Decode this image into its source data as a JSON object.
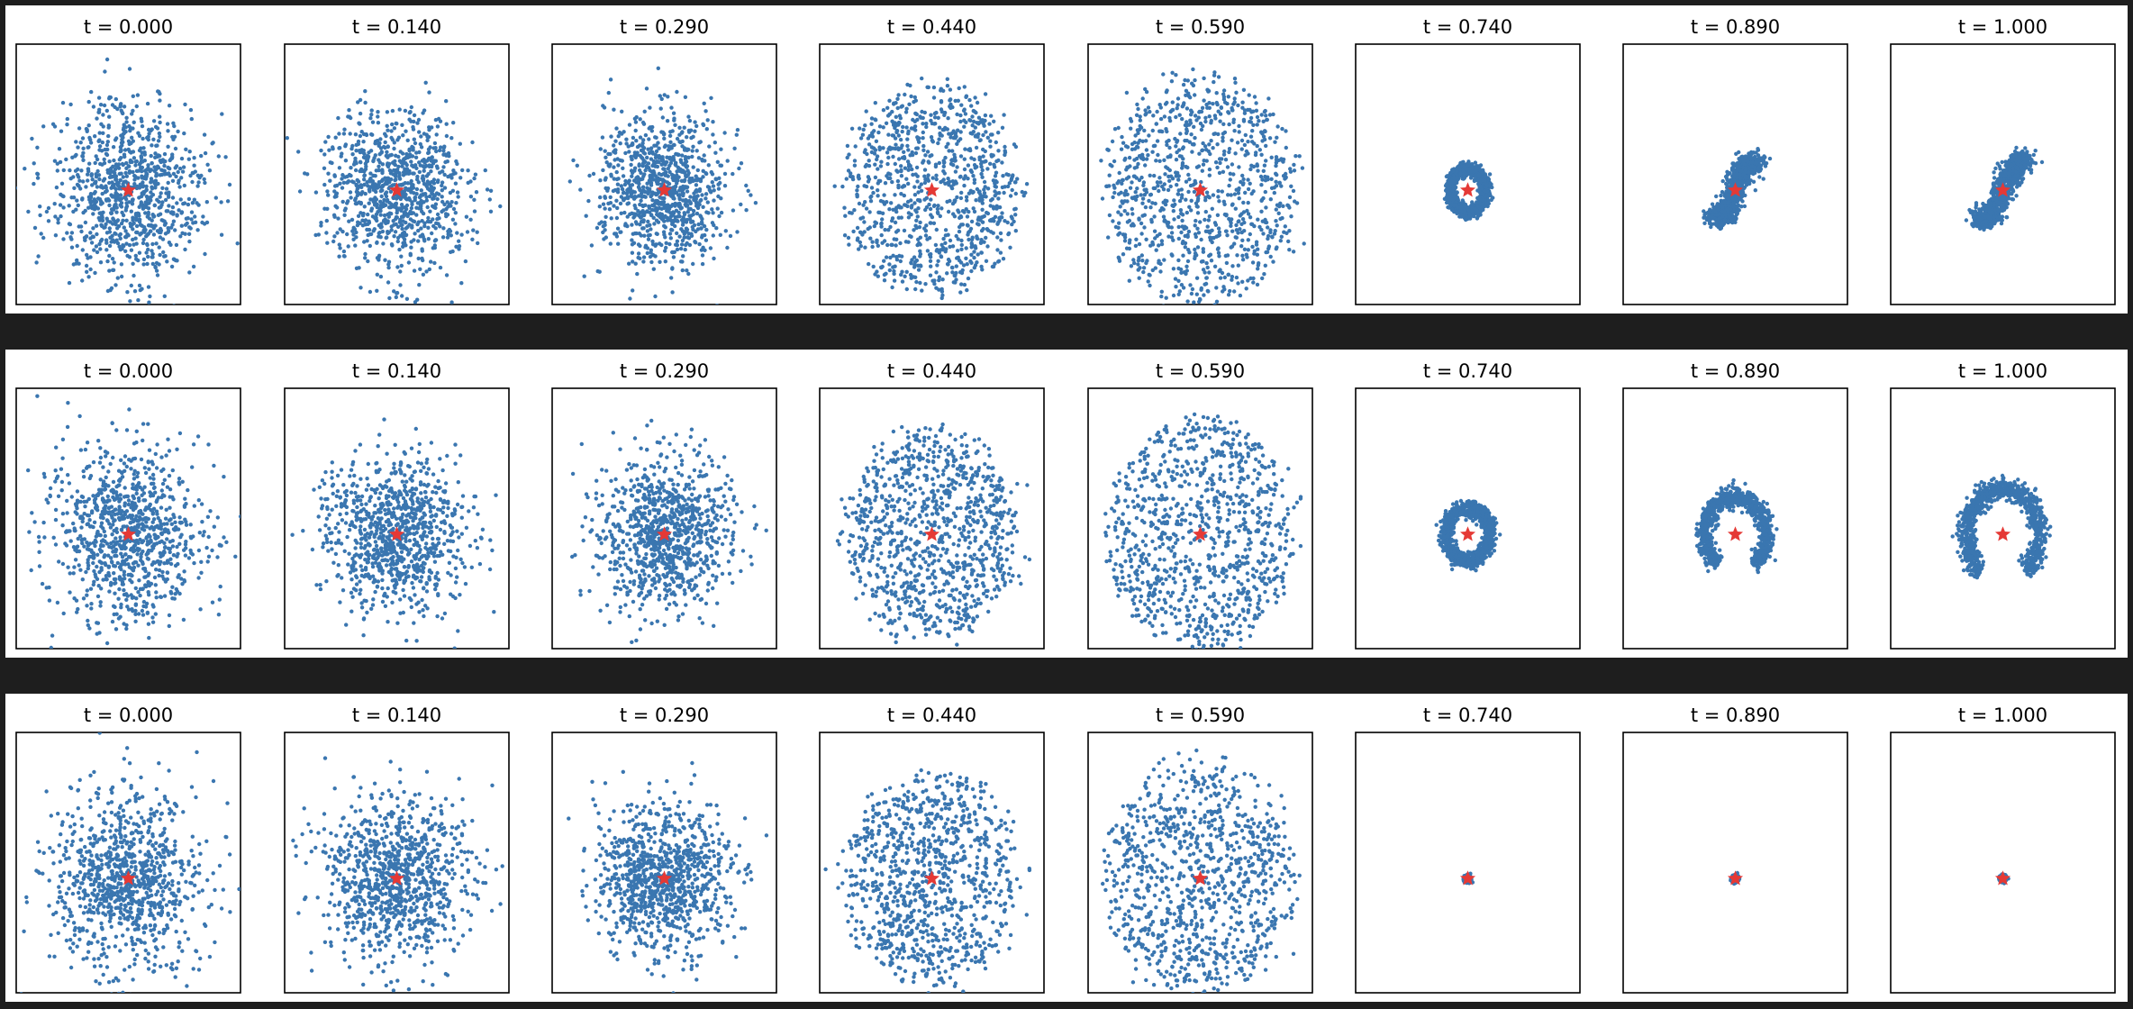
{
  "figure": {
    "colors": {
      "background": "#1e1e1e",
      "panel": "#ffffff",
      "points": "#3a76b0",
      "target_star": "#e53935"
    },
    "target_marker": "red star at origin",
    "rows": 3,
    "columns": 8
  },
  "chart_data": [
    {
      "type": "scatter",
      "row": 1,
      "description": "Row 1: blue point cloud collapsing toward red star target over time; ends as a compact S-shaped cluster",
      "xlim": [
        -2.5,
        2.5
      ],
      "ylim": [
        -2.5,
        3.2
      ],
      "target": {
        "x": 0,
        "y": 0
      },
      "panels": [
        {
          "title": "t = 0.000",
          "spread": 1.0,
          "mode": "gauss"
        },
        {
          "title": "t = 0.140",
          "spread": 0.92,
          "mode": "gauss"
        },
        {
          "title": "t = 0.290",
          "spread": 0.86,
          "mode": "gauss"
        },
        {
          "title": "t = 0.440",
          "spread": 0.95,
          "mode": "uniform"
        },
        {
          "title": "t = 0.590",
          "spread": 1.05,
          "mode": "uniform"
        },
        {
          "title": "t = 0.740",
          "spread": 0.18,
          "mode": "ring"
        },
        {
          "title": "t = 0.890",
          "spread": 0.18,
          "mode": "arms"
        },
        {
          "title": "t = 1.000",
          "spread": 0.2,
          "mode": "arms"
        }
      ]
    },
    {
      "type": "scatter",
      "row": 2,
      "description": "Row 2: blue point cloud collapsing toward red star target; ends as a wider crescent-shaped cluster",
      "xlim": [
        -2.5,
        2.5
      ],
      "ylim": [
        -2.5,
        3.2
      ],
      "target": {
        "x": 0,
        "y": 0
      },
      "panels": [
        {
          "title": "t = 0.000",
          "spread": 1.0,
          "mode": "gauss"
        },
        {
          "title": "t = 0.140",
          "spread": 0.92,
          "mode": "gauss"
        },
        {
          "title": "t = 0.290",
          "spread": 0.86,
          "mode": "gauss"
        },
        {
          "title": "t = 0.440",
          "spread": 0.95,
          "mode": "uniform"
        },
        {
          "title": "t = 0.590",
          "spread": 1.05,
          "mode": "uniform"
        },
        {
          "title": "t = 0.740",
          "spread": 0.22,
          "mode": "ring"
        },
        {
          "title": "t = 0.890",
          "spread": 0.3,
          "mode": "crescent"
        },
        {
          "title": "t = 1.000",
          "spread": 0.36,
          "mode": "crescent"
        }
      ]
    },
    {
      "type": "scatter",
      "row": 3,
      "description": "Row 3: blue point cloud collapsing fully onto the red star target",
      "xlim": [
        -2.5,
        2.5
      ],
      "ylim": [
        -2.5,
        3.2
      ],
      "target": {
        "x": 0,
        "y": 0
      },
      "panels": [
        {
          "title": "t = 0.000",
          "spread": 1.0,
          "mode": "gauss"
        },
        {
          "title": "t = 0.140",
          "spread": 0.92,
          "mode": "gauss"
        },
        {
          "title": "t = 0.290",
          "spread": 0.86,
          "mode": "gauss"
        },
        {
          "title": "t = 0.440",
          "spread": 0.95,
          "mode": "uniform"
        },
        {
          "title": "t = 0.590",
          "spread": 1.05,
          "mode": "uniform"
        },
        {
          "title": "t = 0.740",
          "spread": 0.01,
          "mode": "point"
        },
        {
          "title": "t = 0.890",
          "spread": 0.01,
          "mode": "point"
        },
        {
          "title": "t = 1.000",
          "spread": 0.01,
          "mode": "point"
        }
      ]
    }
  ]
}
